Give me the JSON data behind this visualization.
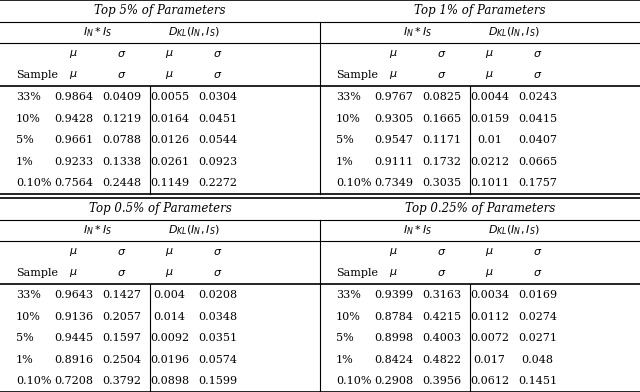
{
  "top_tables": [
    {
      "title": "Top 5% of Parameters",
      "col_groups": [
        "$I_N * I_S$",
        "$D_{KL}(I_N, I_S)$"
      ],
      "rows": [
        [
          "33%",
          "0.9864",
          "0.0409",
          "0.0055",
          "0.0304"
        ],
        [
          "10%",
          "0.9428",
          "0.1219",
          "0.0164",
          "0.0451"
        ],
        [
          "5%",
          "0.9661",
          "0.0788",
          "0.0126",
          "0.0544"
        ],
        [
          "1%",
          "0.9233",
          "0.1338",
          "0.0261",
          "0.0923"
        ],
        [
          "0.10%",
          "0.7564",
          "0.2448",
          "0.1149",
          "0.2272"
        ]
      ]
    },
    {
      "title": "Top 1% of Parameters",
      "col_groups": [
        "$I_N * I_S$",
        "$D_{KL}(I_N, I_S)$"
      ],
      "rows": [
        [
          "33%",
          "0.9767",
          "0.0825",
          "0.0044",
          "0.0243"
        ],
        [
          "10%",
          "0.9305",
          "0.1665",
          "0.0159",
          "0.0415"
        ],
        [
          "5%",
          "0.9547",
          "0.1171",
          "0.01",
          "0.0407"
        ],
        [
          "1%",
          "0.9111",
          "0.1732",
          "0.0212",
          "0.0665"
        ],
        [
          "0.10%",
          "0.7349",
          "0.3035",
          "0.1011",
          "0.1757"
        ]
      ]
    }
  ],
  "bottom_tables": [
    {
      "title": "Top 0.5% of Parameters",
      "col_groups": [
        "$I_N * I_S$",
        "$D_{KL}(I_N, I_S)$"
      ],
      "rows": [
        [
          "33%",
          "0.9643",
          "0.1427",
          "0.004",
          "0.0208"
        ],
        [
          "10%",
          "0.9136",
          "0.2057",
          "0.014",
          "0.0348"
        ],
        [
          "5%",
          "0.9445",
          "0.1597",
          "0.0092",
          "0.0351"
        ],
        [
          "1%",
          "0.8916",
          "0.2504",
          "0.0196",
          "0.0574"
        ],
        [
          "0.10%",
          "0.7208",
          "0.3792",
          "0.0898",
          "0.1599"
        ]
      ]
    },
    {
      "title": "Top 0.25% of Parameters",
      "col_groups": [
        "$I_N * I_S$",
        "$D_{KL}(I_N, I_S)$"
      ],
      "rows": [
        [
          "33%",
          "0.9399",
          "0.3163",
          "0.0034",
          "0.0169"
        ],
        [
          "10%",
          "0.8784",
          "0.4215",
          "0.0112",
          "0.0274"
        ],
        [
          "5%",
          "0.8998",
          "0.4003",
          "0.0072",
          "0.0271"
        ],
        [
          "1%",
          "0.8424",
          "0.4822",
          "0.017",
          "0.048"
        ],
        [
          "0.10%",
          "0.2908",
          "0.3956",
          "0.0612",
          "0.1451"
        ]
      ]
    }
  ],
  "sample_label": "Sample",
  "mu_label": "$\\mu$",
  "sigma_label": "$\\sigma$",
  "bg_color": "#ffffff",
  "text_color": "#000000",
  "line_color": "#000000"
}
